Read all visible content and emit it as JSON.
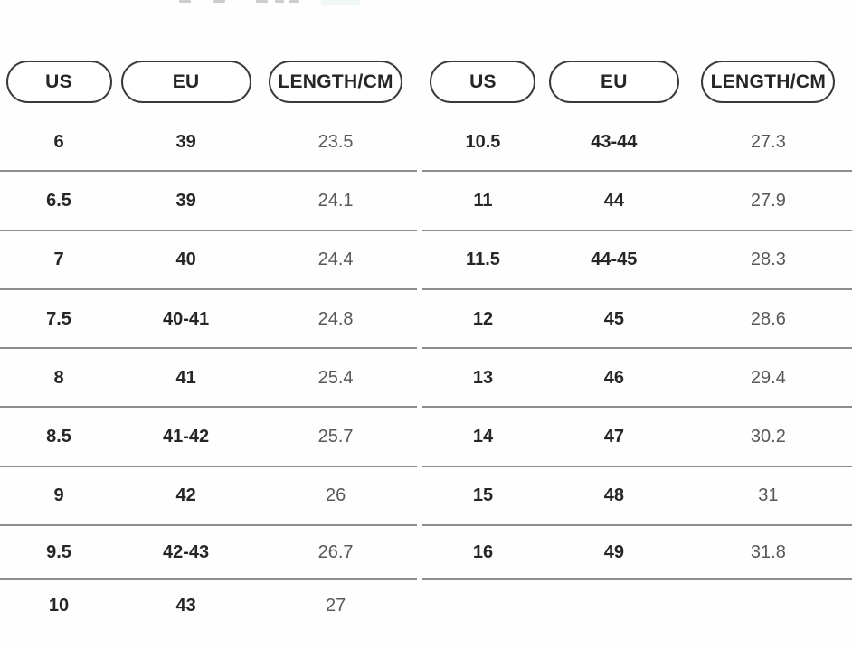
{
  "colors": {
    "row_line": "#8d8d8d",
    "pill_border": "#3a3a3a",
    "value_strong": "#262626",
    "value_light": "#585858",
    "fragment_dash": "#c9cecd",
    "fragment_highlight": "#f0f8f6",
    "page_bg": "#fefefe"
  },
  "tables": [
    {
      "headers": [
        "US",
        "EU",
        "LENGTH/CM"
      ],
      "rows": [
        [
          "6",
          "39",
          "23.5"
        ],
        [
          "6.5",
          "39",
          "24.1"
        ],
        [
          "7",
          "40",
          "24.4"
        ],
        [
          "7.5",
          "40-41",
          "24.8"
        ],
        [
          "8",
          "41",
          "25.4"
        ],
        [
          "8.5",
          "41-42",
          "25.7"
        ],
        [
          "9",
          "42",
          "26"
        ],
        [
          "9.5",
          "42-43",
          "26.7"
        ],
        [
          "10",
          "43",
          "27"
        ]
      ]
    },
    {
      "headers": [
        "US",
        "EU",
        "LENGTH/CM"
      ],
      "rows": [
        [
          "10.5",
          "43-44",
          "27.3"
        ],
        [
          "11",
          "44",
          "27.9"
        ],
        [
          "11.5",
          "44-45",
          "28.3"
        ],
        [
          "12",
          "45",
          "28.6"
        ],
        [
          "13",
          "46",
          "29.4"
        ],
        [
          "14",
          "47",
          "30.2"
        ],
        [
          "15",
          "48",
          "31"
        ],
        [
          "16",
          "49",
          "31.8"
        ]
      ]
    }
  ]
}
